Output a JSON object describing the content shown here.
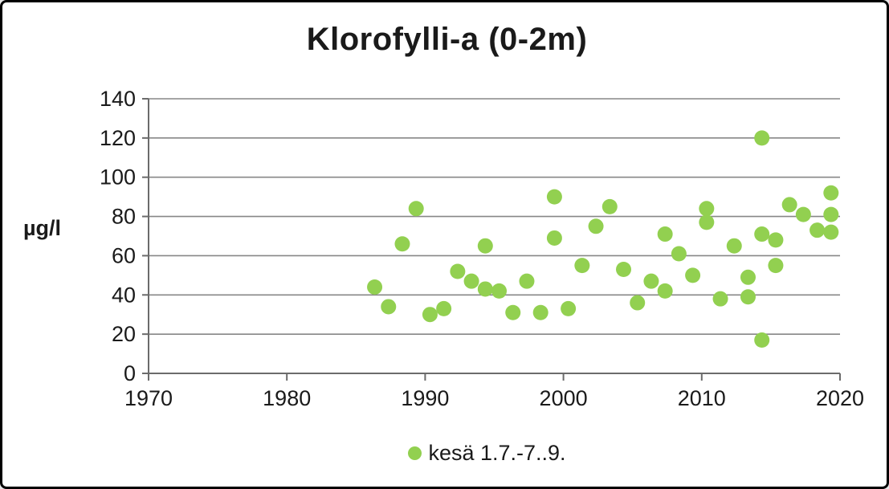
{
  "chart_data": {
    "type": "scatter",
    "title": "Klorofylli-a (0-2m)",
    "ylabel": "µg/l",
    "xlabel": "",
    "xlim": [
      1970,
      2020
    ],
    "ylim": [
      0,
      140
    ],
    "x_ticks": [
      1970,
      1980,
      1990,
      2000,
      2010,
      2020
    ],
    "y_ticks": [
      0,
      20,
      40,
      60,
      80,
      100,
      120,
      140
    ],
    "grid": "horizontal",
    "legend": {
      "position": "bottom-center"
    },
    "series": [
      {
        "name": "kesä 1.7.-7..9.",
        "color": "#92d050",
        "points": [
          {
            "year": 1986,
            "value": 44
          },
          {
            "year": 1987,
            "value": 34
          },
          {
            "year": 1988,
            "value": 66
          },
          {
            "year": 1989,
            "value": 84
          },
          {
            "year": 1990,
            "value": 30
          },
          {
            "year": 1991,
            "value": 33
          },
          {
            "year": 1992,
            "value": 52
          },
          {
            "year": 1993,
            "value": 47
          },
          {
            "year": 1994,
            "value": 65
          },
          {
            "year": 1994,
            "value": 43
          },
          {
            "year": 1995,
            "value": 42
          },
          {
            "year": 1996,
            "value": 31
          },
          {
            "year": 1997,
            "value": 47
          },
          {
            "year": 1998,
            "value": 31
          },
          {
            "year": 1999,
            "value": 90
          },
          {
            "year": 1999,
            "value": 69
          },
          {
            "year": 2000,
            "value": 33
          },
          {
            "year": 2001,
            "value": 55
          },
          {
            "year": 2002,
            "value": 75
          },
          {
            "year": 2003,
            "value": 85
          },
          {
            "year": 2004,
            "value": 53
          },
          {
            "year": 2005,
            "value": 36
          },
          {
            "year": 2006,
            "value": 47
          },
          {
            "year": 2007,
            "value": 71
          },
          {
            "year": 2007,
            "value": 42
          },
          {
            "year": 2008,
            "value": 61
          },
          {
            "year": 2009,
            "value": 50
          },
          {
            "year": 2010,
            "value": 84
          },
          {
            "year": 2010,
            "value": 77
          },
          {
            "year": 2011,
            "value": 38
          },
          {
            "year": 2012,
            "value": 65
          },
          {
            "year": 2013,
            "value": 49
          },
          {
            "year": 2013,
            "value": 39
          },
          {
            "year": 2014,
            "value": 120
          },
          {
            "year": 2014,
            "value": 71
          },
          {
            "year": 2014,
            "value": 17
          },
          {
            "year": 2015,
            "value": 68
          },
          {
            "year": 2015,
            "value": 55
          },
          {
            "year": 2016,
            "value": 86
          },
          {
            "year": 2017,
            "value": 81
          },
          {
            "year": 2018,
            "value": 73
          },
          {
            "year": 2019,
            "value": 92
          },
          {
            "year": 2019,
            "value": 81
          },
          {
            "year": 2019,
            "value": 72
          }
        ]
      }
    ]
  },
  "colors": {
    "dot_green": "#92d050",
    "gridline": "#878787",
    "axis": "#6b6b6b",
    "text": "#1a1a1a",
    "background": "#ffffff",
    "frame_border": "#000000"
  }
}
